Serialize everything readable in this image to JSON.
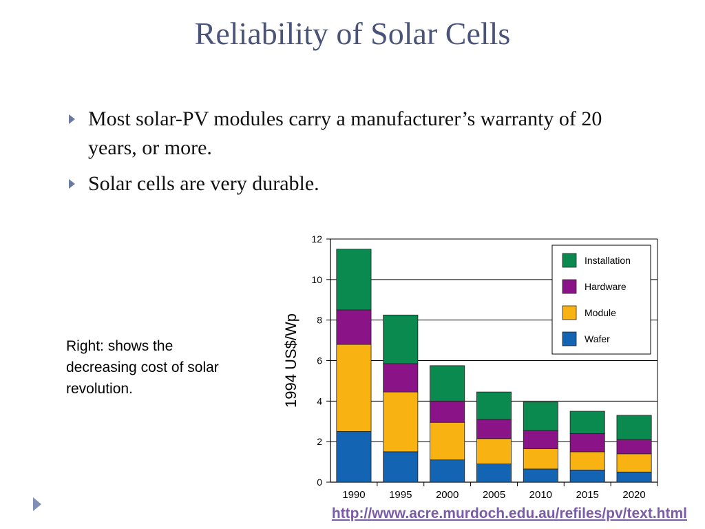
{
  "title": "Reliability of Solar Cells",
  "bullets": [
    "Most solar-PV modules carry a manufacturer’s warranty of 20 years, or more.",
    "Solar cells are very durable."
  ],
  "side_note": "Right: shows the decreasing cost of solar revolution.",
  "source_link": "http://www.acre.murdoch.edu.au/refiles/pv/text.html",
  "colors": {
    "Installation": "#0a8a4e",
    "Hardware": "#8a1487",
    "Module": "#f8b211",
    "Wafer": "#1464b4"
  },
  "chart_data": {
    "type": "bar",
    "stacked": true,
    "categories": [
      "1990",
      "1995",
      "2000",
      "2005",
      "2010",
      "2015",
      "2020"
    ],
    "series": [
      {
        "name": "Wafer",
        "values": [
          2.5,
          1.5,
          1.1,
          0.9,
          0.65,
          0.6,
          0.5
        ]
      },
      {
        "name": "Module",
        "values": [
          4.3,
          2.95,
          1.85,
          1.25,
          1.0,
          0.9,
          0.9
        ]
      },
      {
        "name": "Hardware",
        "values": [
          1.7,
          1.4,
          1.05,
          0.95,
          0.9,
          0.9,
          0.7
        ]
      },
      {
        "name": "Installation",
        "values": [
          3.0,
          2.4,
          1.75,
          1.35,
          1.4,
          1.1,
          1.2
        ]
      }
    ],
    "legend_order": [
      "Installation",
      "Hardware",
      "Module",
      "Wafer"
    ],
    "xlabel": "",
    "ylabel": "1994 US$/Wp",
    "ylim": [
      0,
      12
    ],
    "yticks": [
      0,
      2,
      4,
      6,
      8,
      10,
      12
    ],
    "grid": true,
    "legend_position": "top-right"
  }
}
